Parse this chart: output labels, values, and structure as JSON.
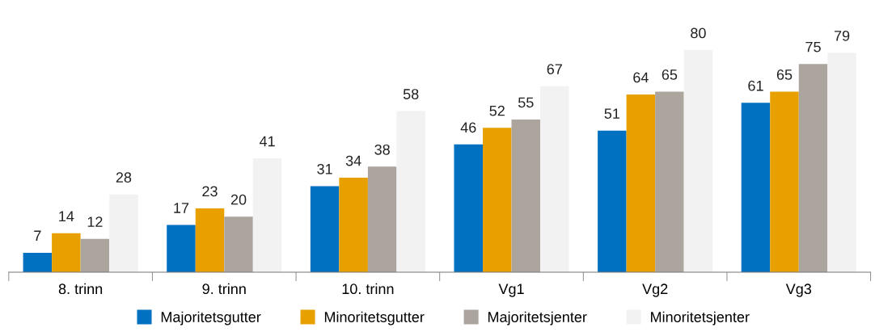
{
  "chart_data": {
    "type": "bar",
    "categories": [
      "8. trinn",
      "9. trinn",
      "10. trinn",
      "Vg1",
      "Vg2",
      "Vg3"
    ],
    "series": [
      {
        "name": "Majoritetsgutter",
        "color": "#0070c0",
        "values": [
          7,
          17,
          31,
          46,
          51,
          61
        ]
      },
      {
        "name": "Minoritetsgutter",
        "color": "#e8a000",
        "values": [
          14,
          23,
          34,
          52,
          64,
          65
        ]
      },
      {
        "name": "Majoritetsjenter",
        "color": "#aca59d",
        "values": [
          12,
          20,
          38,
          55,
          65,
          75
        ]
      },
      {
        "name": "Minoritetsjenter",
        "color": "#f2f2f2",
        "values": [
          28,
          41,
          58,
          67,
          80,
          79
        ]
      }
    ],
    "data_labels": true,
    "tick_labels": "x",
    "grid": false,
    "legend": "bottom"
  }
}
